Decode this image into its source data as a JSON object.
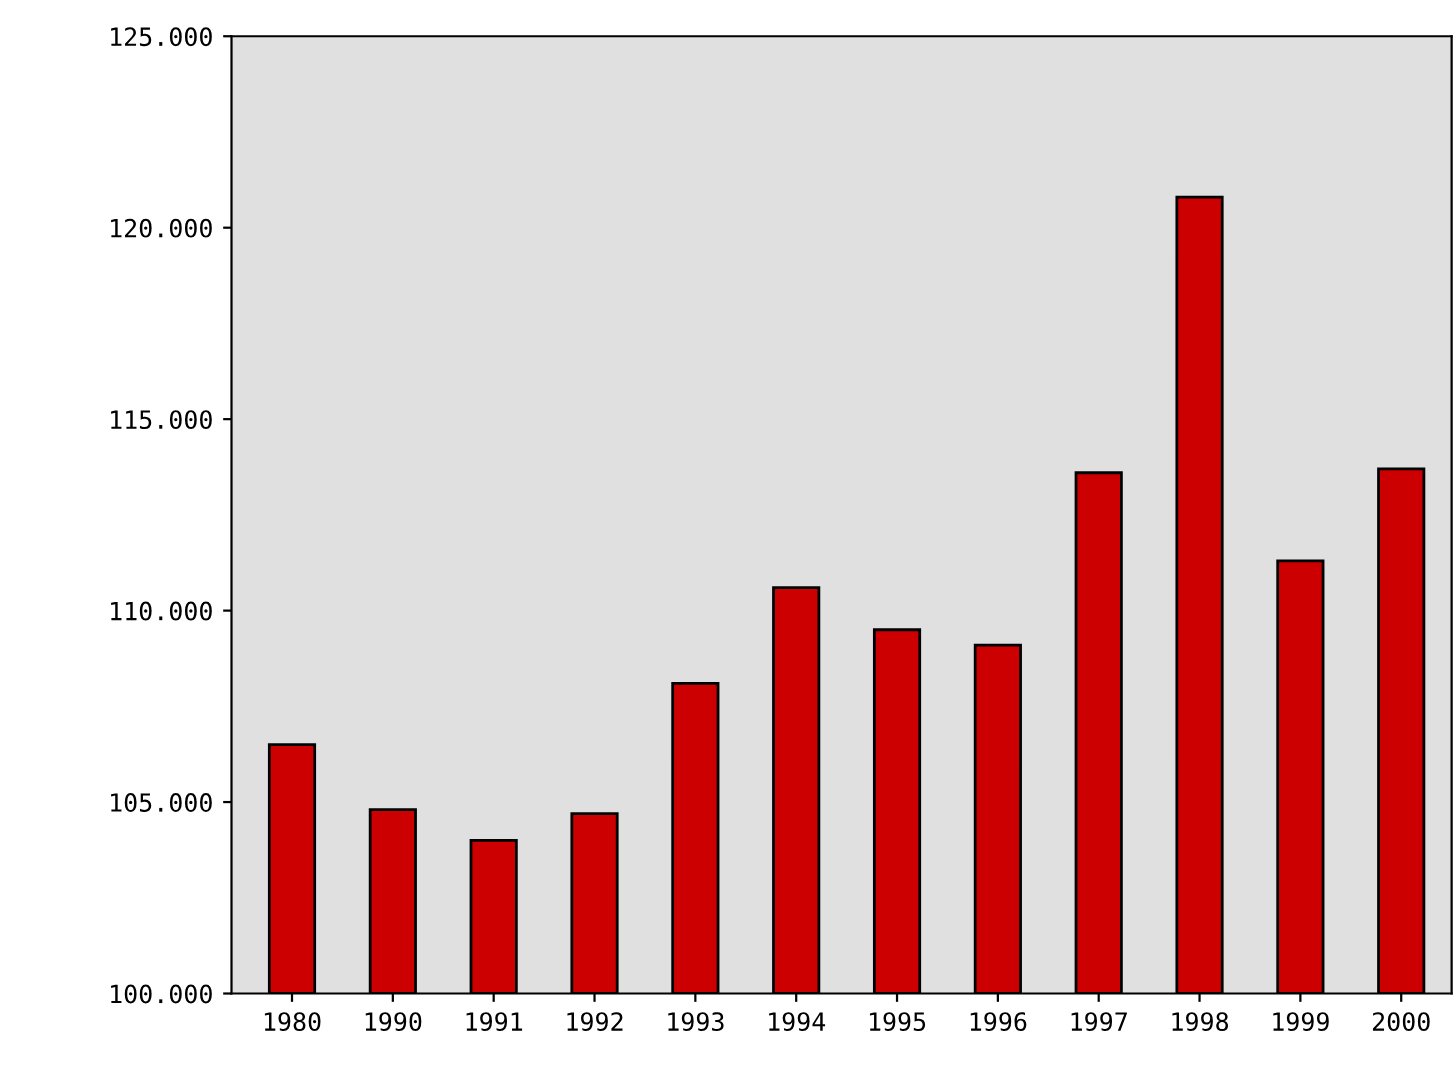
{
  "chart_data": {
    "type": "bar",
    "categories": [
      "1980",
      "1990",
      "1991",
      "1992",
      "1993",
      "1994",
      "1995",
      "1996",
      "1997",
      "1998",
      "1999",
      "2000"
    ],
    "values": [
      106.5,
      104.8,
      104.0,
      104.7,
      108.1,
      110.6,
      109.5,
      109.1,
      113.6,
      120.8,
      111.3,
      113.7
    ],
    "color": "#cc0000",
    "ylim": [
      100,
      125
    ],
    "yticks": [
      {
        "value": 100,
        "label": "100.000"
      },
      {
        "value": 105,
        "label": "105.000"
      },
      {
        "value": 110,
        "label": "110.000"
      },
      {
        "value": 115,
        "label": "115.000"
      },
      {
        "value": 120,
        "label": "120.000"
      },
      {
        "value": 125,
        "label": "125.000"
      }
    ],
    "grid": false,
    "legend": false
  }
}
